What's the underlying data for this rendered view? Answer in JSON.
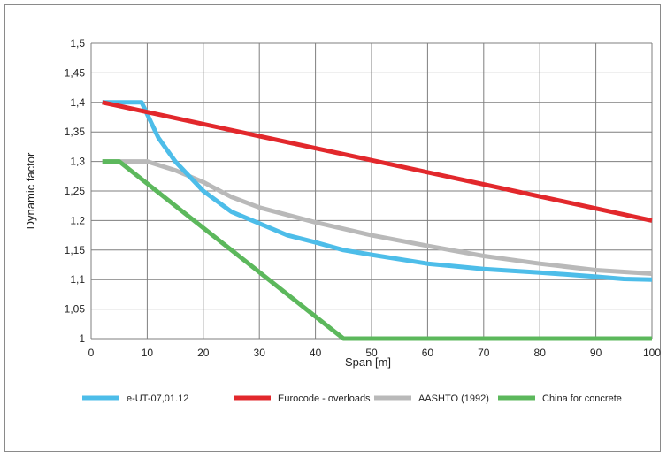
{
  "chart_data": {
    "type": "line",
    "title": "",
    "xlabel": "Span [m]",
    "ylabel": "Dynamic factor",
    "xlim": [
      0,
      100
    ],
    "ylim": [
      1,
      1.5
    ],
    "x_ticks": [
      "0",
      "10",
      "20",
      "30",
      "40",
      "50",
      "60",
      "70",
      "80",
      "90",
      "100"
    ],
    "y_ticks": [
      "1",
      "1,05",
      "1,1",
      "1,15",
      "1,2",
      "1,25",
      "1,3",
      "1,35",
      "1,4",
      "1,45",
      "1,5"
    ],
    "grid": true,
    "legend_position": "bottom",
    "series": [
      {
        "name": "e-UT-07,01.12",
        "color": "#4dbde9",
        "points": [
          [
            2,
            1.4
          ],
          [
            9,
            1.4
          ],
          [
            10,
            1.38
          ],
          [
            12,
            1.34
          ],
          [
            15,
            1.3
          ],
          [
            20,
            1.25
          ],
          [
            25,
            1.215
          ],
          [
            30,
            1.195
          ],
          [
            35,
            1.175
          ],
          [
            40,
            1.163
          ],
          [
            45,
            1.15
          ],
          [
            50,
            1.142
          ],
          [
            60,
            1.127
          ],
          [
            70,
            1.118
          ],
          [
            80,
            1.112
          ],
          [
            90,
            1.105
          ],
          [
            95,
            1.101
          ],
          [
            100,
            1.1
          ]
        ]
      },
      {
        "name": "Eurocode - overloads",
        "color": "#e2282c",
        "points": [
          [
            2,
            1.4
          ],
          [
            100,
            1.2
          ]
        ]
      },
      {
        "name": "AASHTO (1992)",
        "color": "#b9b9b9",
        "points": [
          [
            2,
            1.3
          ],
          [
            10,
            1.3
          ],
          [
            15,
            1.285
          ],
          [
            20,
            1.265
          ],
          [
            25,
            1.24
          ],
          [
            30,
            1.222
          ],
          [
            40,
            1.197
          ],
          [
            50,
            1.175
          ],
          [
            60,
            1.157
          ],
          [
            70,
            1.14
          ],
          [
            80,
            1.127
          ],
          [
            90,
            1.116
          ],
          [
            100,
            1.11
          ]
        ]
      },
      {
        "name": "China for concrete",
        "color": "#5cb85c",
        "points": [
          [
            2,
            1.3
          ],
          [
            5,
            1.3
          ],
          [
            45,
            1.0
          ],
          [
            100,
            1.0
          ]
        ]
      }
    ]
  }
}
